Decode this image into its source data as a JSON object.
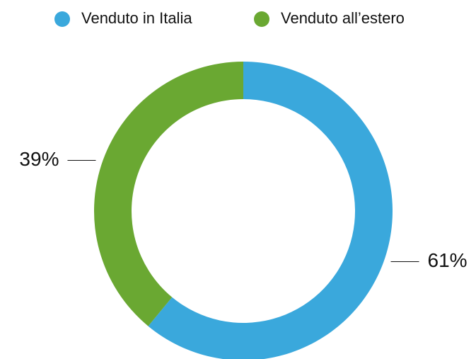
{
  "chart_data": {
    "type": "donut",
    "categories": [
      "Venduto in Italia",
      "Venduto all’estero"
    ],
    "values": [
      61,
      39
    ],
    "value_labels": [
      "61%",
      "39%"
    ],
    "colors": [
      "#3aa8dc",
      "#6aa832"
    ],
    "legend": "top"
  }
}
